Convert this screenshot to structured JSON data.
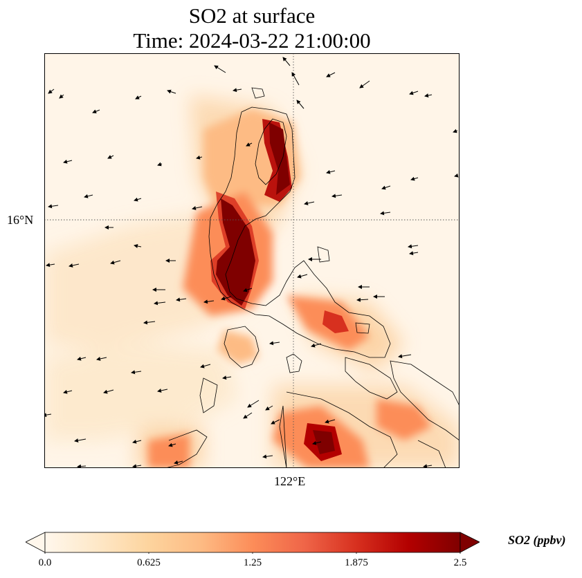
{
  "title": {
    "line1": "SO2 at surface",
    "line2": "Time: 2024-03-22 21:00:00"
  },
  "map": {
    "lat_label": "16°N",
    "lon_label": "122°E",
    "background_color": "#fff5e8"
  },
  "colorbar": {
    "label": "SO2 (ppbv)",
    "ticks": [
      "0.0",
      "0.625",
      "1.25",
      "1.875",
      "2.5"
    ],
    "tick_values": [
      0,
      0.625,
      1.25,
      1.875,
      2.5
    ],
    "min": 0,
    "max": 2.5,
    "colormap": "OrRd",
    "colors": [
      "#fff7ec",
      "#fee8c8",
      "#fdd49e",
      "#fdbb84",
      "#fc8d59",
      "#ef6548",
      "#d7301f",
      "#b30000",
      "#7f0000"
    ]
  }
}
